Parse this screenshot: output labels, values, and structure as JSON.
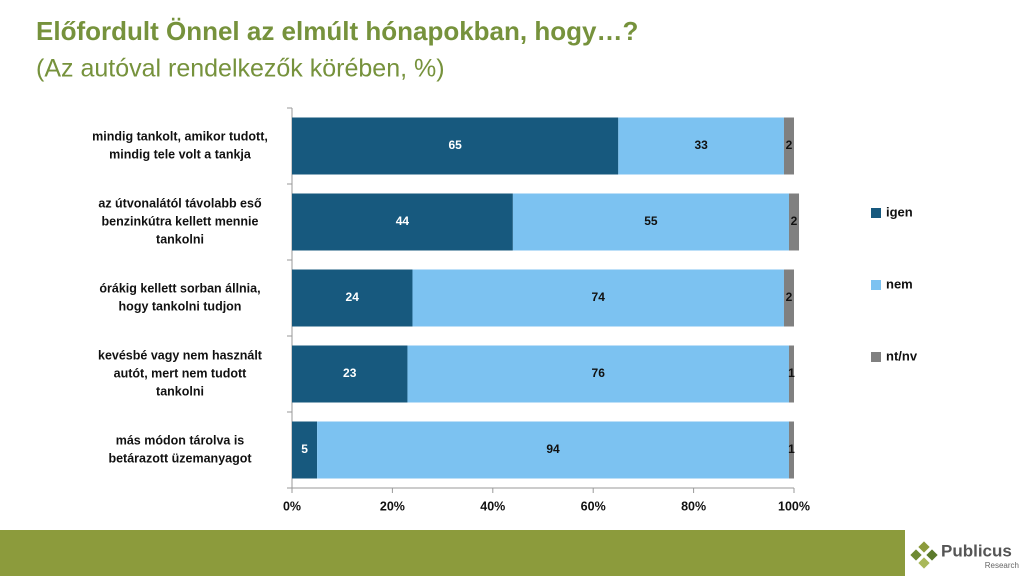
{
  "chart_data": {
    "type": "stacked-bar-horizontal",
    "title": "Előfordult Önnel az elmúlt hónapokban, hogy…?",
    "subtitle": "(Az autóval rendelkezők körében, %)",
    "categories": [
      [
        "mindig tankolt, amikor tudott,",
        "mindig tele volt a tankja"
      ],
      [
        "az útvonalától távolabb eső",
        "benzinkútra kellett mennie",
        "tankolni"
      ],
      [
        "órákig kellett sorban állnia,",
        "hogy tankolni tudjon"
      ],
      [
        "kevésbé vagy nem használt",
        "autót, mert nem tudott",
        "tankolni"
      ],
      [
        "más módon tárolva is",
        "betárazott üzemanyagot"
      ]
    ],
    "series": [
      {
        "name": "igen",
        "color": "#17597e",
        "values": [
          65,
          44,
          24,
          23,
          5
        ]
      },
      {
        "name": "nem",
        "color": "#7cc2f1",
        "values": [
          33,
          55,
          74,
          76,
          94
        ]
      },
      {
        "name": "nt/nv",
        "color": "#808080",
        "values": [
          2,
          2,
          2,
          1,
          1
        ]
      }
    ],
    "xlim": [
      0,
      100
    ],
    "xticks": [
      {
        "value": 0,
        "label": "0%"
      },
      {
        "value": 20,
        "label": "20%"
      },
      {
        "value": 40,
        "label": "40%"
      },
      {
        "value": 60,
        "label": "60%"
      },
      {
        "value": 80,
        "label": "80%"
      },
      {
        "value": 100,
        "label": "100%"
      }
    ],
    "legend": "right"
  },
  "logo": {
    "name": "Publicus",
    "sub": "Research"
  }
}
